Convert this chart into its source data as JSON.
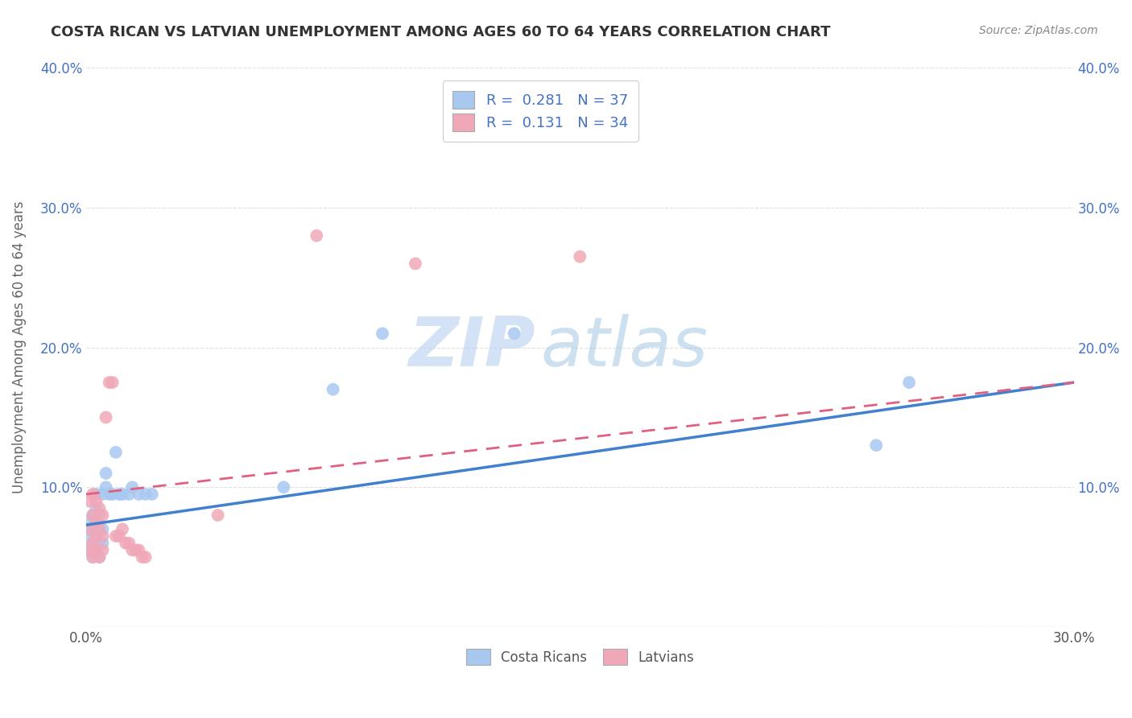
{
  "title": "COSTA RICAN VS LATVIAN UNEMPLOYMENT AMONG AGES 60 TO 64 YEARS CORRELATION CHART",
  "source": "Source: ZipAtlas.com",
  "ylabel": "Unemployment Among Ages 60 to 64 years",
  "xlim": [
    0.0,
    0.3
  ],
  "ylim": [
    0.0,
    0.4
  ],
  "blue_color": "#A8C8F0",
  "pink_color": "#F0A8B8",
  "blue_line_color": "#4080CC",
  "pink_line_color": "#E06080",
  "legend_blue_label": "R =  0.281   N = 37",
  "legend_pink_label": "R =  0.131   N = 34",
  "legend_label_blue": "Costa Ricans",
  "legend_label_pink": "Latvians",
  "watermark_zip": "ZIP",
  "watermark_atlas": "atlas",
  "background_color": "#FFFFFF",
  "grid_color": "#DDDDDD",
  "blue_x": [
    0.001,
    0.001,
    0.001,
    0.002,
    0.002,
    0.002,
    0.002,
    0.003,
    0.003,
    0.003,
    0.003,
    0.003,
    0.004,
    0.004,
    0.004,
    0.004,
    0.005,
    0.005,
    0.005,
    0.006,
    0.006,
    0.007,
    0.008,
    0.009,
    0.01,
    0.011,
    0.013,
    0.014,
    0.016,
    0.018,
    0.02,
    0.06,
    0.075,
    0.09,
    0.13,
    0.24,
    0.25
  ],
  "blue_y": [
    0.055,
    0.065,
    0.075,
    0.05,
    0.06,
    0.07,
    0.08,
    0.055,
    0.065,
    0.075,
    0.085,
    0.095,
    0.05,
    0.06,
    0.07,
    0.08,
    0.06,
    0.07,
    0.095,
    0.1,
    0.11,
    0.095,
    0.095,
    0.125,
    0.095,
    0.095,
    0.095,
    0.1,
    0.095,
    0.095,
    0.095,
    0.1,
    0.17,
    0.21,
    0.21,
    0.13,
    0.175
  ],
  "pink_x": [
    0.001,
    0.001,
    0.001,
    0.002,
    0.002,
    0.002,
    0.002,
    0.003,
    0.003,
    0.003,
    0.003,
    0.004,
    0.004,
    0.004,
    0.005,
    0.005,
    0.005,
    0.006,
    0.007,
    0.008,
    0.009,
    0.01,
    0.011,
    0.012,
    0.013,
    0.014,
    0.015,
    0.016,
    0.017,
    0.018,
    0.04,
    0.07,
    0.1,
    0.15
  ],
  "pink_y": [
    0.055,
    0.07,
    0.09,
    0.05,
    0.06,
    0.08,
    0.095,
    0.055,
    0.065,
    0.075,
    0.09,
    0.05,
    0.07,
    0.085,
    0.055,
    0.065,
    0.08,
    0.15,
    0.175,
    0.175,
    0.065,
    0.065,
    0.07,
    0.06,
    0.06,
    0.055,
    0.055,
    0.055,
    0.05,
    0.05,
    0.08,
    0.28,
    0.26,
    0.265
  ],
  "blue_line_x": [
    0.0,
    0.3
  ],
  "blue_line_y": [
    0.073,
    0.175
  ],
  "pink_line_x": [
    0.0,
    0.3
  ],
  "pink_line_y": [
    0.095,
    0.175
  ]
}
